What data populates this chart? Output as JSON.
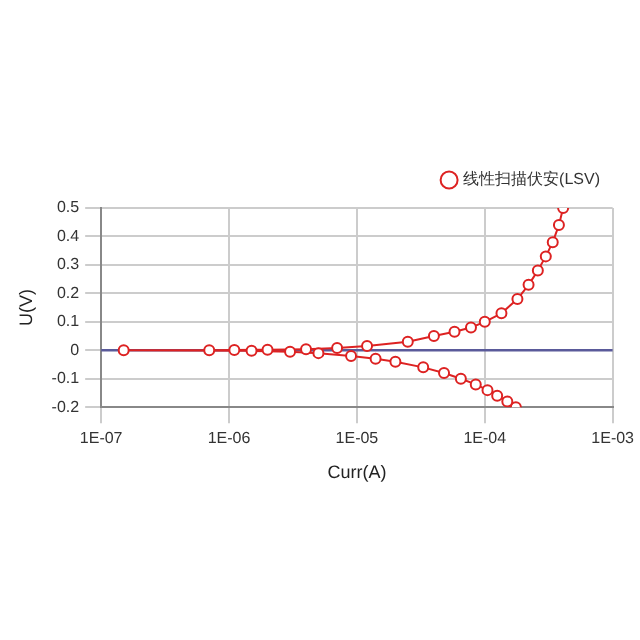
{
  "chart_data": {
    "type": "line",
    "xlabel": "Curr(A)",
    "ylabel": "U(V)",
    "log": "x",
    "grid": true,
    "legend": "top right",
    "marker": "circle",
    "line_style": "solid",
    "xlim": [
      1e-07,
      0.001
    ],
    "ylim": [
      -0.2,
      0.5
    ],
    "xticks": [
      {
        "value": 1e-07,
        "label": "1E-07"
      },
      {
        "value": 1e-06,
        "label": "1E-06"
      },
      {
        "value": 1e-05,
        "label": "1E-05"
      },
      {
        "value": 0.0001,
        "label": "1E-04"
      },
      {
        "value": 0.001,
        "label": "1E-03"
      }
    ],
    "yticks": [
      -0.2,
      -0.1,
      0,
      0.1,
      0.2,
      0.3,
      0.4,
      0.5
    ],
    "ref_lines": [
      {
        "axis": "y",
        "value": 0,
        "color": "#5a5a9a"
      }
    ],
    "series": [
      {
        "name": "线性扫描伏安(LSV)",
        "color": "#dd2222",
        "x": [
          0.000175,
          0.00015,
          0.000125,
          0.000105,
          8.5e-05,
          6.5e-05,
          4.8e-05,
          3.3e-05,
          2e-05,
          1.4e-05,
          9e-06,
          5e-06,
          3e-06,
          1.5e-06,
          1.5e-07,
          7e-07,
          1.1e-06,
          2e-06,
          4e-06,
          7e-06,
          1.2e-05,
          2.5e-05,
          4e-05,
          5.8e-05,
          7.8e-05,
          0.0001,
          0.000135,
          0.00018,
          0.00022,
          0.00026,
          0.0003,
          0.00034,
          0.00038,
          0.00041
        ],
        "values": [
          -0.2,
          -0.18,
          -0.16,
          -0.14,
          -0.12,
          -0.1,
          -0.08,
          -0.06,
          -0.04,
          -0.03,
          -0.02,
          -0.01,
          -0.005,
          -0.002,
          0,
          0,
          0.001,
          0.002,
          0.004,
          0.008,
          0.015,
          0.03,
          0.05,
          0.065,
          0.08,
          0.1,
          0.13,
          0.18,
          0.23,
          0.28,
          0.33,
          0.38,
          0.44,
          0.5
        ]
      }
    ]
  }
}
